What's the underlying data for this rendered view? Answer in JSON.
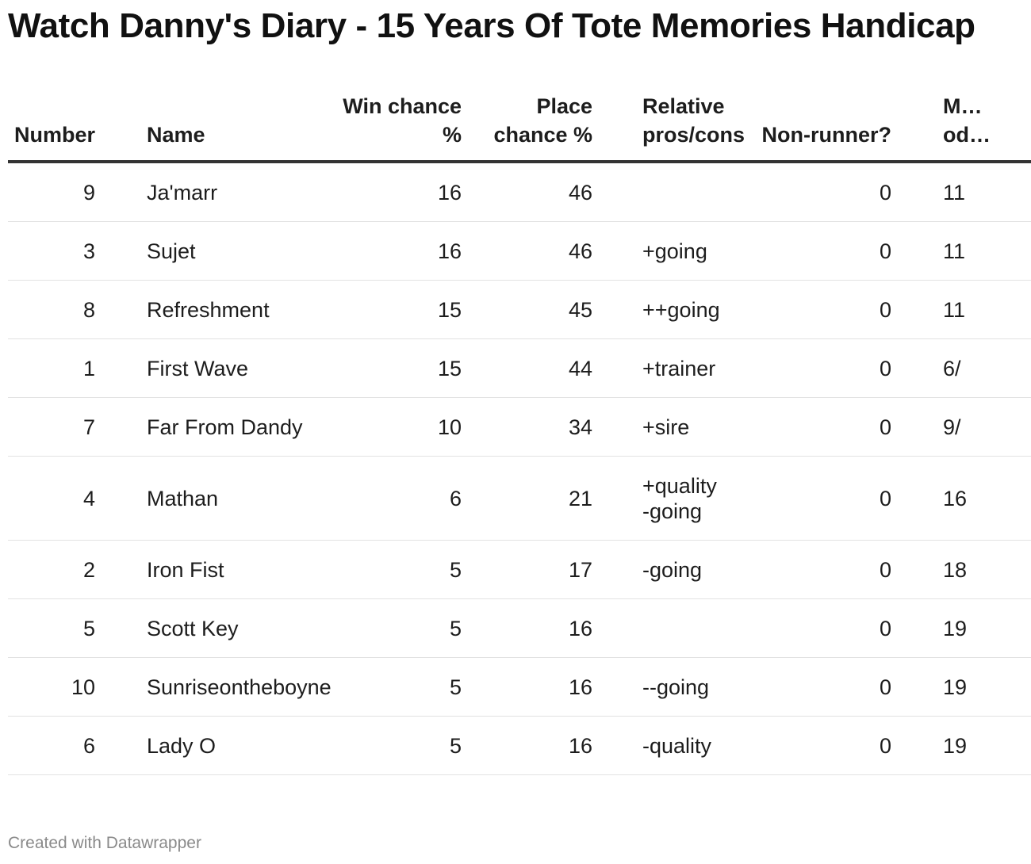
{
  "chart_data": {
    "type": "table",
    "title": "Watch Danny's Diary - 15 Years Of Tote Memories Handicap",
    "columns": [
      "Number",
      "Name",
      "Win chance %",
      "Place chance %",
      "Relative pros/cons",
      "Non-runner?",
      "M… od…"
    ],
    "rows": [
      {
        "number": "9",
        "name": "Ja'marr",
        "win": "16",
        "place": "46",
        "relative": "",
        "nonrunner": "0",
        "odds": "11"
      },
      {
        "number": "3",
        "name": "Sujet",
        "win": "16",
        "place": "46",
        "relative": "+going",
        "nonrunner": "0",
        "odds": "11"
      },
      {
        "number": "8",
        "name": "Refreshment",
        "win": "15",
        "place": "45",
        "relative": "++going",
        "nonrunner": "0",
        "odds": "11"
      },
      {
        "number": "1",
        "name": "First Wave",
        "win": "15",
        "place": "44",
        "relative": "+trainer",
        "nonrunner": "0",
        "odds": "6/"
      },
      {
        "number": "7",
        "name": "Far From Dandy",
        "win": "10",
        "place": "34",
        "relative": "+sire",
        "nonrunner": "0",
        "odds": "9/"
      },
      {
        "number": "4",
        "name": "Mathan",
        "win": "6",
        "place": "21",
        "relative": "+quality\n-going",
        "nonrunner": "0",
        "odds": "16"
      },
      {
        "number": "2",
        "name": "Iron Fist",
        "win": "5",
        "place": "17",
        "relative": "-going",
        "nonrunner": "0",
        "odds": "18"
      },
      {
        "number": "5",
        "name": "Scott Key",
        "win": "5",
        "place": "16",
        "relative": "",
        "nonrunner": "0",
        "odds": "19"
      },
      {
        "number": "10",
        "name": "Sunriseontheboyne",
        "win": "5",
        "place": "16",
        "relative": "--going",
        "nonrunner": "0",
        "odds": "19"
      },
      {
        "number": "6",
        "name": "Lady O",
        "win": "5",
        "place": "16",
        "relative": "-quality",
        "nonrunner": "0",
        "odds": "19"
      }
    ]
  },
  "table": {
    "headers": {
      "number": "Number",
      "name": "Name",
      "win": "Win chance %",
      "place": "Place chance %",
      "relative": "Relative pros/cons",
      "nonrunner": "Non-runner?",
      "odds": "M… od…"
    }
  },
  "footer": {
    "credit": "Created with Datawrapper"
  },
  "colors": {
    "text": "#1d1d1d",
    "header_rule": "#333333",
    "row_rule": "#e2e2e2",
    "credit": "#8a8a8a"
  }
}
